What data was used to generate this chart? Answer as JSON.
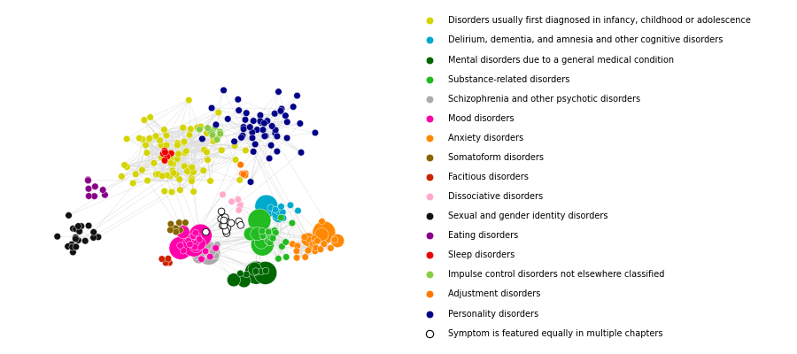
{
  "legend_items": [
    {
      "label": "Disorders usually first diagnosed in infancy, childhood or adolescence",
      "color": "#d4d400",
      "filled": true
    },
    {
      "label": "Delirium, dementia, and amnesia and other cognitive disorders",
      "color": "#00aacc",
      "filled": true
    },
    {
      "label": "Mental disorders due to a general medical condition",
      "color": "#006600",
      "filled": true
    },
    {
      "label": "Substance-related disorders",
      "color": "#22bb22",
      "filled": true
    },
    {
      "label": "Schizophrenia and other psychotic disorders",
      "color": "#aaaaaa",
      "filled": true
    },
    {
      "label": "Mood disorders",
      "color": "#ff00aa",
      "filled": true
    },
    {
      "label": "Anxiety disorders",
      "color": "#ff8800",
      "filled": true
    },
    {
      "label": "Somatoform disorders",
      "color": "#886600",
      "filled": true
    },
    {
      "label": "Facitious disorders",
      "color": "#cc2200",
      "filled": true
    },
    {
      "label": "Dissociative disorders",
      "color": "#ffaacc",
      "filled": true
    },
    {
      "label": "Sexual and gender identity disorders",
      "color": "#111111",
      "filled": true
    },
    {
      "label": "Eating disorders",
      "color": "#880088",
      "filled": true
    },
    {
      "label": "Sleep disorders",
      "color": "#ee0000",
      "filled": true
    },
    {
      "label": "Impulse control disorders not elsewhere classified",
      "color": "#88cc44",
      "filled": true
    },
    {
      "label": "Adjustment disorders",
      "color": "#ff7700",
      "filled": true
    },
    {
      "label": "Personality disorders",
      "color": "#000088",
      "filled": true
    },
    {
      "label": "Symptom is featured equally in multiple chapters",
      "color": "#ffffff",
      "filled": false
    }
  ],
  "figsize": [
    9.0,
    4.0
  ],
  "dpi": 100,
  "edge_color": "#cccccc",
  "edge_alpha": 0.6,
  "edge_linewidth": 0.35,
  "legend_fontsize": 7.0,
  "legend_marker_size": 6
}
